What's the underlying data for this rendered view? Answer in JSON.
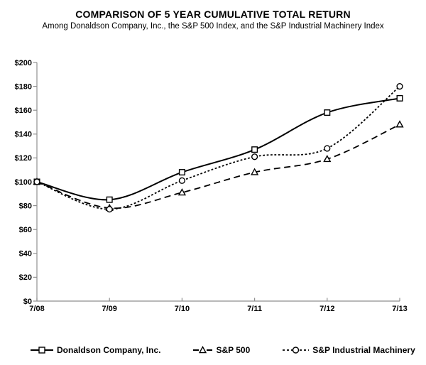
{
  "page_background": "#ffffff",
  "colors": {
    "series_line": "#000000",
    "marker_fill": "#ffffff",
    "axis": "#8f8f8f",
    "text": "#000000"
  },
  "chart_data": {
    "type": "line",
    "title": "COMPARISON OF 5 YEAR CUMULATIVE TOTAL RETURN",
    "subtitle": "Among Donaldson Company, Inc., the S&P 500 Index, and the S&P Industrial Machinery Index",
    "categories": [
      "7/08",
      "7/09",
      "7/10",
      "7/11",
      "7/12",
      "7/13"
    ],
    "series": [
      {
        "name": "Donaldson Company, Inc.",
        "marker": "square",
        "line_style": "solid",
        "values": [
          100,
          85,
          108,
          127,
          158,
          170
        ]
      },
      {
        "name": "S&P 500",
        "marker": "triangle",
        "line_style": "long-dash",
        "values": [
          100,
          78,
          91,
          108,
          119,
          148
        ]
      },
      {
        "name": "S&P Industrial Machinery",
        "marker": "circle",
        "line_style": "short-dash",
        "values": [
          100,
          77,
          101,
          121,
          128,
          180
        ]
      }
    ],
    "xlabel": "",
    "ylabel": "",
    "ylim": [
      0,
      200
    ],
    "ytick_step": 20,
    "ytick_labels": [
      "$0",
      "$20",
      "$40",
      "$60",
      "$80",
      "$100",
      "$120",
      "$140",
      "$160",
      "$180",
      "$200"
    ],
    "grid": false,
    "legend_position": "bottom"
  }
}
